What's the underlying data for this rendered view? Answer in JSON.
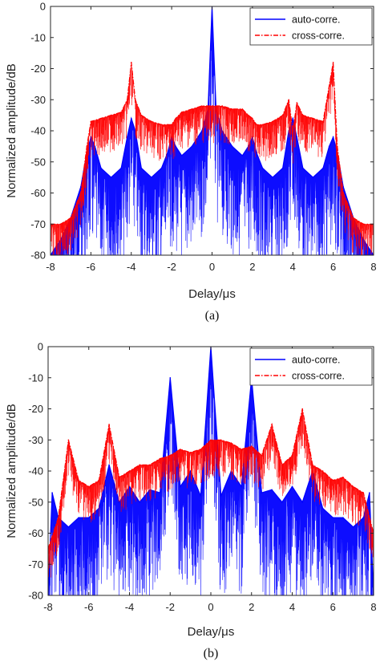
{
  "chart_data": [
    {
      "type": "line",
      "panel_label": "(a)",
      "xlabel": "Delay/μs",
      "ylabel": "Normalized amplitude/dB",
      "xlim": [
        -8,
        8
      ],
      "ylim": [
        -80,
        0
      ],
      "xticks": [
        -8,
        -6,
        -4,
        -2,
        0,
        2,
        4,
        6,
        8
      ],
      "yticks": [
        0,
        -10,
        -20,
        -30,
        -40,
        -50,
        -60,
        -70,
        -80
      ],
      "grid": false,
      "legend_position": "top-right",
      "series": [
        {
          "name": "auto-corre.",
          "color": "#0000ff",
          "style": "solid",
          "x": [
            -8,
            -7.5,
            -7,
            -6.5,
            -6.2,
            -6,
            -5.8,
            -5.5,
            -5,
            -4.5,
            -4.2,
            -4,
            -3.8,
            -3.5,
            -3,
            -2.5,
            -2.2,
            -2,
            -1.8,
            -1.5,
            -1,
            -0.5,
            -0.2,
            0,
            0.2,
            0.5,
            1,
            1.5,
            1.8,
            2,
            2.2,
            2.5,
            3,
            3.5,
            3.8,
            4,
            4.2,
            4.5,
            5,
            5.5,
            5.8,
            6,
            6.2,
            6.5,
            7,
            7.5,
            8
          ],
          "y": [
            -80,
            -75,
            -68,
            -58,
            -47,
            -42,
            -45,
            -52,
            -55,
            -52,
            -42,
            -36,
            -40,
            -52,
            -55,
            -52,
            -47,
            -42,
            -45,
            -48,
            -45,
            -40,
            -33,
            0,
            -33,
            -40,
            -45,
            -48,
            -45,
            -42,
            -47,
            -52,
            -55,
            -52,
            -40,
            -36,
            -42,
            -52,
            -55,
            -52,
            -45,
            -42,
            -47,
            -58,
            -68,
            -75,
            -80
          ]
        },
        {
          "name": "cross-corre.",
          "color": "#ff0000",
          "style": "dash-dot",
          "x": [
            -8,
            -7.5,
            -7,
            -6.5,
            -6.2,
            -6,
            -5.5,
            -5,
            -4.5,
            -4.2,
            -4,
            -3.8,
            -3.5,
            -3,
            -2.5,
            -2.2,
            -2,
            -1.8,
            -1.5,
            -1,
            -0.5,
            0,
            0.5,
            1,
            1.5,
            1.8,
            2,
            2.2,
            2.5,
            3,
            3.5,
            3.8,
            4,
            4.2,
            4.5,
            5,
            5.5,
            6,
            6.2,
            6.5,
            7,
            7.5,
            8
          ],
          "y": [
            -70,
            -70,
            -68,
            -60,
            -45,
            -37,
            -36,
            -35,
            -34,
            -30,
            -18,
            -30,
            -35,
            -37,
            -38,
            -38,
            -38,
            -36,
            -34,
            -33,
            -32,
            -32,
            -32,
            -33,
            -33,
            -35,
            -36,
            -38,
            -38,
            -37,
            -35,
            -30,
            -40,
            -31,
            -35,
            -36,
            -37,
            -18,
            -45,
            -60,
            -68,
            -70,
            -70
          ]
        }
      ]
    },
    {
      "type": "line",
      "panel_label": "(b)",
      "xlabel": "Delay/μs",
      "ylabel": "Normalized amplitude/dB",
      "xlim": [
        -8,
        8
      ],
      "ylim": [
        -80,
        0
      ],
      "xticks": [
        -8,
        -6,
        -4,
        -2,
        0,
        2,
        4,
        6,
        8
      ],
      "yticks": [
        0,
        -10,
        -20,
        -30,
        -40,
        -50,
        -60,
        -70,
        -80
      ],
      "grid": false,
      "legend_position": "top-right",
      "series": [
        {
          "name": "auto-corre.",
          "color": "#0000ff",
          "style": "solid",
          "x": [
            -8,
            -7.8,
            -7.5,
            -7,
            -6.5,
            -6,
            -5.5,
            -5,
            -4.5,
            -4,
            -3.5,
            -3,
            -2.5,
            -2,
            -1.5,
            -1,
            -0.5,
            0,
            0.5,
            1,
            1.5,
            2,
            2.5,
            3,
            3.5,
            4,
            4.5,
            5,
            5.5,
            6,
            6.5,
            7,
            7.5,
            7.8,
            8
          ],
          "y": [
            -80,
            -47,
            -55,
            -58,
            -55,
            -55,
            -52,
            -38,
            -50,
            -45,
            -50,
            -46,
            -47,
            -10,
            -45,
            -40,
            -48,
            0,
            -48,
            -40,
            -45,
            -10,
            -47,
            -46,
            -50,
            -45,
            -50,
            -40,
            -52,
            -55,
            -55,
            -58,
            -55,
            -47,
            -80
          ]
        },
        {
          "name": "cross-corre.",
          "color": "#ff0000",
          "style": "dash-dot",
          "x": [
            -8,
            -7.5,
            -7,
            -6.5,
            -6,
            -5.5,
            -5,
            -4.5,
            -4,
            -3.5,
            -3,
            -2.5,
            -2,
            -1.5,
            -1,
            -0.5,
            0,
            0.5,
            1,
            1.5,
            2,
            2.5,
            3,
            3.5,
            4,
            4.5,
            5,
            5.5,
            6,
            6.5,
            7,
            7.5,
            8
          ],
          "y": [
            -65,
            -55,
            -30,
            -43,
            -45,
            -43,
            -25,
            -42,
            -40,
            -38,
            -38,
            -36,
            -35,
            -33,
            -34,
            -33,
            -30,
            -30,
            -31,
            -33,
            -32,
            -35,
            -25,
            -38,
            -35,
            -20,
            -38,
            -40,
            -43,
            -42,
            -45,
            -47,
            -60
          ]
        }
      ]
    }
  ]
}
